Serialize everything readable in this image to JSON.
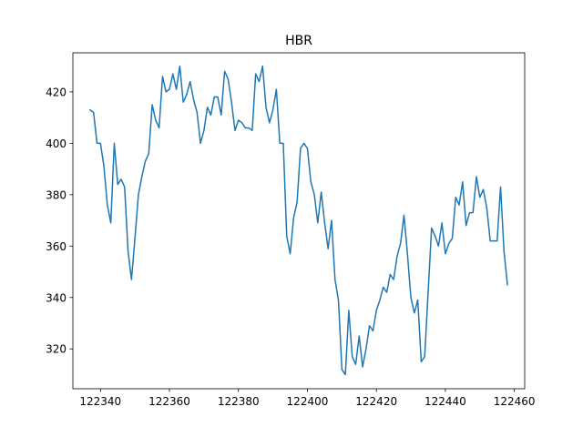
{
  "chart_data": {
    "type": "line",
    "title": "HBR",
    "xlabel": "",
    "ylabel": "",
    "grid": false,
    "xlim": [
      122332,
      122463
    ],
    "ylim": [
      304.5,
      435.2
    ],
    "x_ticks": [
      122340,
      122360,
      122380,
      122400,
      122420,
      122440,
      122460
    ],
    "y_ticks": [
      320,
      340,
      360,
      380,
      400,
      420
    ],
    "series": [
      {
        "color": "#1f77b4",
        "x": [
          122337,
          122338,
          122339,
          122340,
          122341,
          122342,
          122343,
          122344,
          122345,
          122346,
          122347,
          122348,
          122349,
          122350,
          122351,
          122352,
          122353,
          122354,
          122355,
          122356,
          122357,
          122358,
          122359,
          122360,
          122361,
          122362,
          122363,
          122364,
          122365,
          122366,
          122367,
          122368,
          122369,
          122370,
          122371,
          122372,
          122373,
          122374,
          122375,
          122376,
          122377,
          122378,
          122379,
          122380,
          122381,
          122382,
          122383,
          122384,
          122385,
          122386,
          122387,
          122388,
          122389,
          122390,
          122391,
          122392,
          122393,
          122394,
          122395,
          122396,
          122397,
          122398,
          122399,
          122400,
          122401,
          122402,
          122403,
          122404,
          122405,
          122406,
          122407,
          122408,
          122409,
          122410,
          122411,
          122412,
          122413,
          122414,
          122415,
          122416,
          122417,
          122418,
          122419,
          122420,
          122421,
          122422,
          122423,
          122424,
          122425,
          122426,
          122427,
          122428,
          122429,
          122430,
          122431,
          122432,
          122433,
          122434,
          122435,
          122436,
          122437,
          122438,
          122439,
          122440,
          122441,
          122442,
          122443,
          122444,
          122445,
          122446,
          122447,
          122448,
          122449,
          122450,
          122451,
          122452,
          122453,
          122454,
          122455,
          122456,
          122457,
          122458
        ],
        "y": [
          413,
          412,
          400,
          400,
          391,
          376,
          369,
          400,
          384,
          386,
          383,
          358,
          347,
          363,
          380,
          387,
          393,
          396,
          415,
          409,
          406,
          426,
          420,
          421,
          427,
          421,
          430,
          416,
          419,
          424,
          417,
          412,
          400,
          405,
          414,
          411,
          418,
          418,
          411,
          428,
          425,
          416,
          405,
          409,
          408,
          406,
          406,
          405,
          427,
          424,
          430,
          414,
          408,
          413,
          421,
          400,
          400,
          364,
          357,
          371,
          377,
          398,
          400,
          398,
          385,
          380,
          369,
          381,
          369,
          359,
          370,
          347,
          339,
          312,
          310,
          335,
          317,
          314,
          325,
          313,
          320,
          329,
          327,
          335,
          339,
          344,
          342,
          349,
          347,
          356,
          361,
          372,
          357,
          340,
          334,
          339,
          315,
          317,
          342,
          367,
          364,
          360,
          369,
          357,
          361,
          363,
          379,
          376,
          385,
          368,
          373,
          373,
          387,
          379,
          382,
          375,
          362,
          362,
          362,
          383,
          358,
          345
        ]
      }
    ]
  }
}
